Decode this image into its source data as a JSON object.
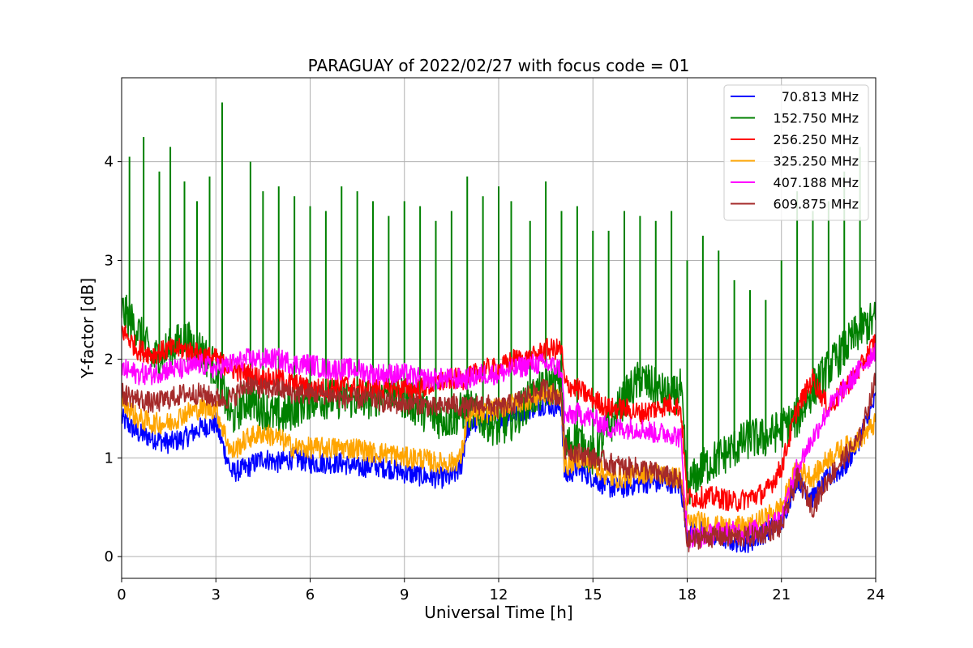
{
  "chart_data": {
    "type": "line",
    "title": "PARAGUAY of 2022/02/27 with focus code = 01",
    "xlabel": "Universal Time [h]",
    "ylabel": "Y-factor [dB]",
    "xlim": [
      0,
      24
    ],
    "ylim": [
      -0.22,
      4.85
    ],
    "xticks": [
      0,
      3,
      6,
      9,
      12,
      15,
      18,
      21,
      24
    ],
    "yticks": [
      0,
      1,
      2,
      3,
      4
    ],
    "grid": true,
    "legend_position": "top-right",
    "series": [
      {
        "name": " 70.813 MHz",
        "color": "#0000ff",
        "x": [
          0,
          0.5,
          1,
          1.5,
          2,
          2.5,
          3,
          3.5,
          4,
          4.5,
          5,
          5.5,
          6,
          6.5,
          7,
          7.5,
          8,
          8.5,
          9,
          9.5,
          10,
          10.5,
          10.8,
          11,
          11.5,
          12,
          12.5,
          13,
          13.5,
          14,
          14.1,
          14.5,
          15,
          15.5,
          16,
          16.5,
          17,
          17.5,
          17.8,
          18,
          18.5,
          19,
          19.5,
          20,
          20.5,
          21,
          21.5,
          22,
          22.5,
          23,
          23.5,
          24
        ],
        "y": [
          1.4,
          1.25,
          1.2,
          1.15,
          1.2,
          1.3,
          1.35,
          0.85,
          0.9,
          1.0,
          0.95,
          1.0,
          0.95,
          0.95,
          0.95,
          0.9,
          0.92,
          0.9,
          0.85,
          0.82,
          0.8,
          0.8,
          0.9,
          1.3,
          1.4,
          1.4,
          1.45,
          1.5,
          1.55,
          1.5,
          0.8,
          0.9,
          0.8,
          0.7,
          0.7,
          0.75,
          0.75,
          0.75,
          0.7,
          0.25,
          0.25,
          0.2,
          0.15,
          0.15,
          0.25,
          0.35,
          0.8,
          0.6,
          0.8,
          0.9,
          1.2,
          1.6
        ]
      },
      {
        "name": "152.750 MHz",
        "color": "#008000",
        "x": [
          0,
          0.5,
          1,
          1.5,
          2,
          2.5,
          3,
          3.5,
          4,
          4.5,
          5,
          5.5,
          6,
          6.5,
          7,
          7.5,
          8,
          8.5,
          9,
          9.5,
          10,
          10.5,
          11,
          11.5,
          12,
          12.5,
          13,
          13.5,
          14,
          14.1,
          14.5,
          15,
          15.5,
          16,
          16.5,
          17,
          17.5,
          17.8,
          18,
          18.5,
          19,
          19.5,
          20,
          20.5,
          21,
          21.5,
          22,
          22.5,
          23,
          23.5,
          24
        ],
        "y": [
          2.5,
          2.3,
          2.0,
          2.1,
          2.2,
          2.1,
          1.9,
          1.4,
          1.6,
          1.5,
          1.4,
          1.5,
          1.6,
          1.6,
          1.6,
          1.6,
          1.6,
          1.7,
          1.6,
          1.5,
          1.4,
          1.4,
          1.5,
          1.4,
          1.3,
          1.4,
          1.6,
          1.7,
          1.8,
          1.1,
          1.2,
          1.0,
          1.3,
          1.6,
          1.8,
          1.7,
          1.6,
          1.7,
          0.7,
          0.9,
          1.0,
          1.1,
          1.2,
          1.2,
          1.3,
          1.4,
          1.7,
          1.9,
          2.1,
          2.3,
          2.4
        ]
      },
      {
        "name": "256.250 MHz",
        "color": "#ff0000",
        "x": [
          0,
          0.5,
          1,
          1.5,
          2,
          2.5,
          3,
          3.5,
          4,
          4.5,
          5,
          5.5,
          6,
          6.5,
          7,
          7.5,
          8,
          8.5,
          9,
          9.5,
          10,
          10.5,
          11,
          11.5,
          12,
          12.5,
          13,
          13.5,
          14,
          14.1,
          14.5,
          15,
          15.5,
          16,
          16.5,
          17,
          17.5,
          17.8,
          18,
          18.5,
          19,
          19.5,
          20,
          20.5,
          21,
          21.5,
          22,
          22.5,
          23,
          23.5,
          24
        ],
        "y": [
          2.3,
          2.1,
          2.05,
          2.1,
          2.1,
          2.05,
          2.0,
          1.9,
          1.85,
          1.8,
          1.8,
          1.75,
          1.7,
          1.7,
          1.75,
          1.7,
          1.7,
          1.7,
          1.7,
          1.7,
          1.75,
          1.8,
          1.8,
          1.9,
          1.9,
          2.0,
          2.0,
          2.1,
          2.1,
          1.75,
          1.7,
          1.6,
          1.5,
          1.5,
          1.45,
          1.5,
          1.55,
          1.5,
          0.6,
          0.6,
          0.6,
          0.55,
          0.6,
          0.65,
          0.9,
          1.5,
          1.8,
          1.5,
          1.7,
          1.9,
          2.2
        ]
      },
      {
        "name": "325.250 MHz",
        "color": "#ffa500",
        "x": [
          0,
          0.5,
          1,
          1.5,
          2,
          2.5,
          3,
          3.5,
          4,
          4.5,
          5,
          5.5,
          6,
          6.5,
          7,
          7.5,
          8,
          8.5,
          9,
          9.5,
          10,
          10.5,
          10.8,
          11,
          11.5,
          12,
          12.5,
          13,
          13.5,
          14,
          14.1,
          14.5,
          15,
          15.5,
          16,
          16.5,
          17,
          17.5,
          17.8,
          18,
          18.5,
          19,
          19.5,
          20,
          20.5,
          21,
          21.5,
          22,
          22.5,
          23,
          23.5,
          24
        ],
        "y": [
          1.6,
          1.4,
          1.35,
          1.35,
          1.45,
          1.5,
          1.5,
          1.05,
          1.2,
          1.25,
          1.2,
          1.1,
          1.1,
          1.1,
          1.1,
          1.1,
          1.05,
          1.05,
          1.0,
          1.0,
          0.95,
          0.95,
          1.0,
          1.4,
          1.45,
          1.5,
          1.55,
          1.6,
          1.65,
          1.6,
          0.9,
          1.0,
          0.95,
          0.8,
          0.8,
          0.85,
          0.85,
          0.8,
          0.8,
          0.35,
          0.35,
          0.3,
          0.3,
          0.3,
          0.4,
          0.5,
          0.9,
          0.8,
          1.0,
          1.1,
          1.2,
          1.35
        ]
      },
      {
        "name": "407.188 MHz",
        "color": "#ff00ff",
        "x": [
          0,
          0.5,
          1,
          1.5,
          2,
          2.5,
          3,
          3.5,
          4,
          4.5,
          5,
          5.5,
          6,
          6.5,
          7,
          7.5,
          8,
          8.5,
          9,
          9.5,
          10,
          10.5,
          11,
          11.5,
          12,
          12.5,
          13,
          13.5,
          14,
          14.1,
          14.5,
          15,
          15.5,
          16,
          16.5,
          17,
          17.5,
          17.8,
          18,
          18.5,
          19,
          19.5,
          20,
          20.5,
          21,
          21.5,
          22,
          22.5,
          23,
          23.5,
          24
        ],
        "y": [
          1.9,
          1.85,
          1.85,
          1.9,
          1.9,
          1.95,
          1.9,
          1.95,
          2.0,
          2.0,
          2.0,
          1.95,
          1.95,
          1.9,
          1.9,
          1.9,
          1.85,
          1.85,
          1.85,
          1.8,
          1.8,
          1.8,
          1.8,
          1.85,
          1.85,
          1.9,
          1.95,
          1.95,
          1.9,
          1.4,
          1.45,
          1.4,
          1.3,
          1.3,
          1.3,
          1.25,
          1.25,
          1.2,
          0.2,
          0.2,
          0.25,
          0.25,
          0.25,
          0.3,
          0.4,
          0.9,
          1.2,
          1.5,
          1.7,
          1.9,
          2.1
        ]
      },
      {
        "name": "609.875 MHz",
        "color": "#a52a2a",
        "x": [
          0,
          0.5,
          1,
          1.5,
          2,
          2.5,
          3,
          3.5,
          4,
          4.5,
          5,
          5.5,
          6,
          6.5,
          7,
          7.5,
          8,
          8.5,
          9,
          9.5,
          10,
          10.5,
          11,
          11.5,
          12,
          12.5,
          13,
          13.5,
          14,
          14.1,
          14.5,
          15,
          15.5,
          16,
          16.5,
          17,
          17.5,
          17.8,
          18,
          18.5,
          19,
          19.5,
          20,
          20.5,
          21,
          21.5,
          22,
          22.5,
          23,
          23.5,
          24
        ],
        "y": [
          1.65,
          1.6,
          1.55,
          1.6,
          1.65,
          1.65,
          1.6,
          1.6,
          1.75,
          1.7,
          1.7,
          1.65,
          1.65,
          1.65,
          1.6,
          1.6,
          1.6,
          1.55,
          1.55,
          1.55,
          1.5,
          1.55,
          1.5,
          1.55,
          1.5,
          1.55,
          1.65,
          1.7,
          1.6,
          1.1,
          1.05,
          1.0,
          0.95,
          0.9,
          0.9,
          0.85,
          0.8,
          0.75,
          0.15,
          0.2,
          0.2,
          0.2,
          0.2,
          0.25,
          0.3,
          0.8,
          0.5,
          0.8,
          1.0,
          1.2,
          1.8
        ]
      }
    ],
    "spikes": {
      "series": "152.750 MHz",
      "x": [
        0.25,
        0.7,
        1.2,
        1.55,
        2.0,
        2.4,
        2.8,
        3.2,
        4.1,
        4.5,
        5.0,
        5.5,
        6.0,
        6.5,
        7.0,
        7.5,
        8.0,
        8.5,
        9.0,
        9.5,
        10.0,
        10.5,
        11.0,
        11.5,
        12.0,
        12.4,
        13.0,
        13.5,
        14.0,
        14.5,
        15.0,
        15.5,
        16.0,
        16.5,
        17.0,
        17.5,
        18.0,
        18.5,
        19.0,
        19.5,
        20.0,
        20.5,
        21.0,
        21.5,
        22.0,
        22.5,
        23.0,
        23.5
      ],
      "y": [
        4.05,
        4.25,
        3.9,
        4.15,
        3.8,
        3.6,
        3.85,
        4.6,
        4.0,
        3.7,
        3.75,
        3.65,
        3.55,
        3.5,
        3.75,
        3.7,
        3.6,
        3.45,
        3.6,
        3.55,
        3.4,
        3.5,
        3.85,
        3.65,
        3.75,
        3.6,
        3.4,
        3.8,
        3.5,
        3.55,
        3.3,
        3.3,
        3.5,
        3.45,
        3.4,
        3.5,
        3.0,
        3.25,
        3.1,
        2.8,
        2.7,
        2.6,
        3.0,
        3.7,
        3.5,
        3.6,
        3.9,
        4.15
      ]
    }
  }
}
